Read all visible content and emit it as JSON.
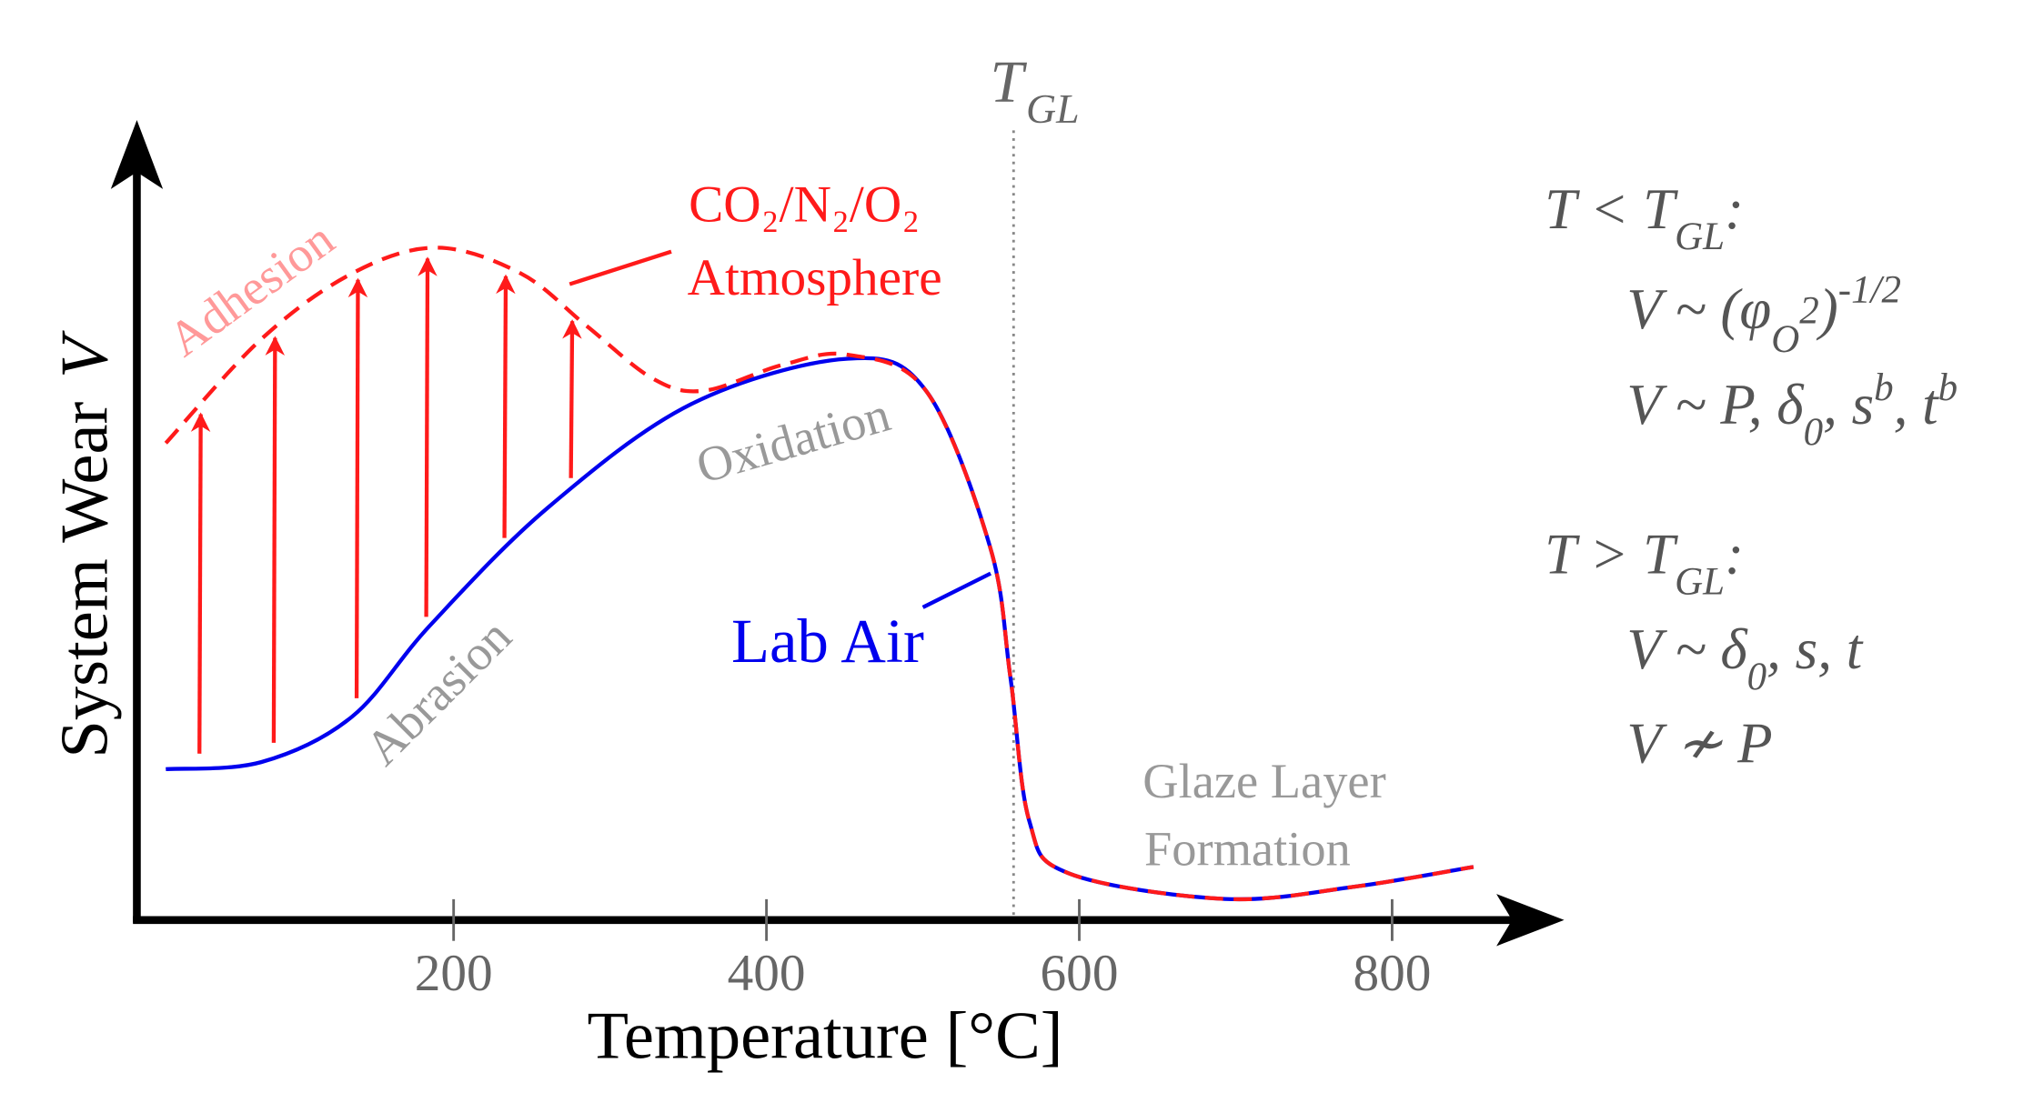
{
  "chart_data": {
    "type": "line",
    "title": "",
    "xlabel": "Temperature [°C]",
    "ylabel_text": "System Wear",
    "ylabel_symbol": "V",
    "xlim": [
      0,
      900
    ],
    "ylim": [
      0,
      100
    ],
    "xticks": [
      200,
      400,
      600,
      800
    ],
    "yticks": [],
    "grid": false,
    "series": [
      {
        "name": "Lab Air",
        "color": "#0000ee",
        "style": "solid",
        "x": [
          16,
          77,
          135,
          185,
          260,
          352,
          452,
          502,
          543,
          556,
          568,
          593,
          693,
          777,
          852
        ],
        "y": [
          19.3,
          20.2,
          26,
          37.7,
          52.7,
          66,
          71.8,
          67.7,
          47.7,
          31,
          12.7,
          6,
          2.7,
          4.3,
          6.8
        ]
      },
      {
        "name": "CO2/N2/O2 Atmosphere",
        "color": "#ff1a1a",
        "style": "dashed",
        "x": [
          16,
          77,
          135,
          189,
          243,
          285,
          327,
          360,
          410,
          452,
          502,
          543,
          556,
          568,
          593,
          693,
          777,
          852
        ],
        "y": [
          61,
          74.3,
          82.7,
          86,
          82.7,
          76,
          69.3,
          67.7,
          71,
          72.3,
          67.7,
          47.7,
          31,
          12.7,
          6,
          2.7,
          4.3,
          6.8
        ]
      }
    ],
    "arrows_at_x": [
      37.5,
      85,
      138,
      182.5,
      232.5,
      275
    ],
    "vline": {
      "x": 558,
      "label_main": "T",
      "label_sub": "GL"
    },
    "annotations": {
      "adhesion": "Adhesion",
      "abrasion": "Abrasion",
      "oxidation": "Oxidation",
      "atm_line1": "CO₂/N₂/O₂",
      "atm_line2": "Atmosphere",
      "lab_air": "Lab Air",
      "glaze1": "Glaze Layer",
      "glaze2": "Formation"
    }
  },
  "equations": {
    "low_head": "T < T",
    "low_head_sub": "GL",
    "colon": ":",
    "low1_a": "V ~ (φ",
    "low1_sub": "O",
    "low1_sup2": "2",
    "low1_b": ")",
    "low1_sup": "-1/2",
    "low2_a": "V ~ P, δ",
    "low2_sub": "0",
    "low2_b": ", s",
    "low2_sup1": "b",
    "low2_c": ", t",
    "low2_sup2": "b",
    "high_head": "T > T",
    "high_head_sub": "GL",
    "high1_a": "V ~ δ",
    "high1_sub": "0",
    "high1_b": ", s, t",
    "high2": "V ≁ P"
  }
}
